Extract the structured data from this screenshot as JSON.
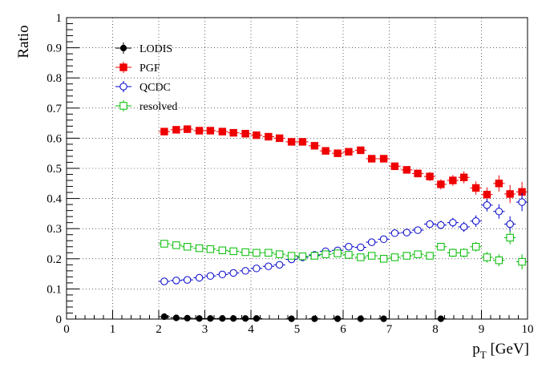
{
  "chart_data": {
    "type": "scatter",
    "ylabel": "Ratio",
    "xlabel_main": "p",
    "xlabel_sub": "T",
    "xlabel_unit": " [GeV]",
    "xlim": [
      0,
      10
    ],
    "ylim": [
      0,
      1
    ],
    "x_ticks": [
      "0",
      "1",
      "2",
      "3",
      "4",
      "5",
      "6",
      "7",
      "8",
      "9",
      "10"
    ],
    "y_ticks": [
      "0",
      "0.1",
      "0.2",
      "0.3",
      "0.4",
      "0.5",
      "0.6",
      "0.7",
      "0.8",
      "0.9",
      "1"
    ],
    "grid": true,
    "legend_position": "top-left",
    "series": [
      {
        "name": "LODIS",
        "marker": "filled-circle",
        "color": "#000000",
        "x": [
          2.12,
          2.38,
          2.62,
          2.88,
          3.12,
          3.38,
          3.62,
          3.88,
          4.12,
          4.88,
          5.38,
          5.88,
          6.38,
          6.88,
          8.12
        ],
        "y": [
          0.008,
          0.004,
          0.003,
          0.002,
          0.002,
          0.002,
          0.002,
          0.002,
          0.002,
          0.001,
          0.001,
          0.001,
          0.001,
          0.001,
          0.001
        ],
        "err": [
          0.003,
          0.002,
          0.002,
          0.001,
          0.001,
          0.001,
          0.001,
          0.001,
          0.001,
          0.001,
          0.001,
          0.001,
          0.001,
          0.001,
          0.001
        ]
      },
      {
        "name": "PGF",
        "marker": "filled-square",
        "color": "#ee0000",
        "x": [
          2.12,
          2.38,
          2.62,
          2.88,
          3.12,
          3.38,
          3.62,
          3.88,
          4.12,
          4.38,
          4.62,
          4.88,
          5.12,
          5.38,
          5.62,
          5.88,
          6.12,
          6.38,
          6.62,
          6.88,
          7.12,
          7.38,
          7.62,
          7.88,
          8.12,
          8.38,
          8.62,
          8.88,
          9.12,
          9.38,
          9.62,
          9.88
        ],
        "y": [
          0.622,
          0.628,
          0.63,
          0.625,
          0.625,
          0.622,
          0.618,
          0.615,
          0.61,
          0.605,
          0.6,
          0.588,
          0.588,
          0.575,
          0.558,
          0.55,
          0.555,
          0.56,
          0.532,
          0.532,
          0.507,
          0.495,
          0.483,
          0.473,
          0.447,
          0.46,
          0.47,
          0.435,
          0.413,
          0.45,
          0.415,
          0.422
        ],
        "err": [
          0.006,
          0.006,
          0.006,
          0.006,
          0.006,
          0.006,
          0.006,
          0.006,
          0.006,
          0.007,
          0.007,
          0.007,
          0.007,
          0.008,
          0.008,
          0.008,
          0.009,
          0.01,
          0.01,
          0.011,
          0.012,
          0.012,
          0.013,
          0.015,
          0.017,
          0.018,
          0.02,
          0.022,
          0.024,
          0.027,
          0.03,
          0.033
        ]
      },
      {
        "name": "QCDC",
        "marker": "open-circle",
        "color": "#0000cc",
        "x": [
          2.12,
          2.38,
          2.62,
          2.88,
          3.12,
          3.38,
          3.62,
          3.88,
          4.12,
          4.38,
          4.62,
          4.88,
          5.12,
          5.38,
          5.62,
          5.88,
          6.12,
          6.38,
          6.62,
          6.88,
          7.12,
          7.38,
          7.62,
          7.88,
          8.12,
          8.38,
          8.62,
          8.88,
          9.12,
          9.38,
          9.62,
          9.88
        ],
        "y": [
          0.125,
          0.128,
          0.13,
          0.137,
          0.143,
          0.148,
          0.153,
          0.16,
          0.168,
          0.175,
          0.18,
          0.198,
          0.205,
          0.213,
          0.225,
          0.228,
          0.24,
          0.238,
          0.255,
          0.265,
          0.285,
          0.287,
          0.295,
          0.315,
          0.312,
          0.32,
          0.306,
          0.325,
          0.378,
          0.357,
          0.315,
          0.388
        ],
        "err": [
          0.004,
          0.004,
          0.004,
          0.004,
          0.004,
          0.004,
          0.004,
          0.005,
          0.005,
          0.005,
          0.005,
          0.006,
          0.006,
          0.006,
          0.007,
          0.007,
          0.008,
          0.008,
          0.009,
          0.009,
          0.01,
          0.011,
          0.012,
          0.013,
          0.014,
          0.016,
          0.017,
          0.019,
          0.021,
          0.024,
          0.026,
          0.03
        ]
      },
      {
        "name": "resolved",
        "marker": "open-square",
        "color": "#00bb00",
        "x": [
          2.12,
          2.38,
          2.62,
          2.88,
          3.12,
          3.38,
          3.62,
          3.88,
          4.12,
          4.38,
          4.62,
          4.88,
          5.12,
          5.38,
          5.62,
          5.88,
          6.12,
          6.38,
          6.62,
          6.88,
          7.12,
          7.38,
          7.62,
          7.88,
          8.12,
          8.38,
          8.62,
          8.88,
          9.12,
          9.38,
          9.62,
          9.88
        ],
        "y": [
          0.25,
          0.245,
          0.24,
          0.235,
          0.232,
          0.228,
          0.225,
          0.222,
          0.22,
          0.22,
          0.215,
          0.21,
          0.208,
          0.21,
          0.215,
          0.218,
          0.213,
          0.205,
          0.21,
          0.2,
          0.205,
          0.21,
          0.215,
          0.21,
          0.24,
          0.22,
          0.22,
          0.24,
          0.205,
          0.195,
          0.27,
          0.19
        ],
        "err": [
          0.004,
          0.004,
          0.004,
          0.004,
          0.004,
          0.004,
          0.004,
          0.004,
          0.005,
          0.005,
          0.005,
          0.005,
          0.006,
          0.006,
          0.006,
          0.007,
          0.007,
          0.008,
          0.008,
          0.009,
          0.009,
          0.01,
          0.011,
          0.012,
          0.013,
          0.014,
          0.015,
          0.016,
          0.018,
          0.02,
          0.022,
          0.025
        ]
      }
    ]
  }
}
